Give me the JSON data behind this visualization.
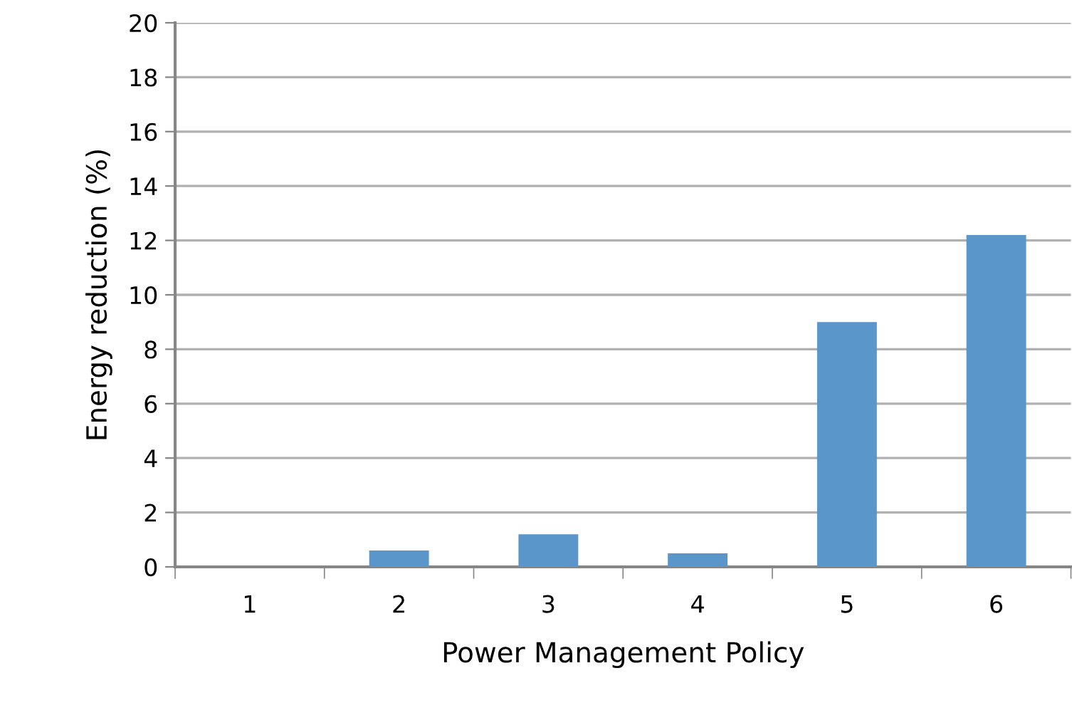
{
  "chart_data": {
    "type": "bar",
    "xlabel": "Power Management Policy",
    "ylabel": "Energy reduction (%)",
    "categories": [
      "1",
      "2",
      "3",
      "4",
      "5",
      "6"
    ],
    "values": [
      0,
      0.6,
      1.2,
      0.5,
      9.0,
      12.2
    ],
    "color": "#5b96cb",
    "ylim": [
      0,
      20
    ],
    "yticks": [
      0,
      2,
      4,
      6,
      8,
      10,
      12,
      14,
      16,
      18,
      20
    ],
    "grid": "y",
    "legend": false
  }
}
